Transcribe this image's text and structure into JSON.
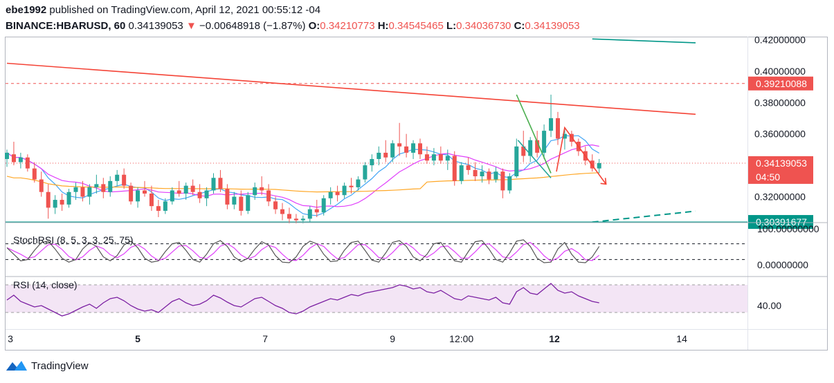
{
  "header": {
    "line1": {
      "user": "ebe1992",
      "rest": " published on TradingView.com, April 12, 2021 00:55:12 -04"
    },
    "symbol": "BINANCE:HBARUSD, 60",
    "price": "0.34139053",
    "arrow": "▼",
    "change": "−0.00648918 (−1.87%)",
    "o_label": "O:",
    "o_value": "0.34210773",
    "h_label": "H:",
    "h_value": "0.34545465",
    "l_label": "L:",
    "l_value": "0.34036730",
    "c_label": "C:",
    "c_value": "0.34139053"
  },
  "brand": {
    "name": "TradingView",
    "logo_icon": "tradingview-logo-icon"
  },
  "colors": {
    "up": "#26a69a",
    "down": "#ef5350",
    "trend_red": "#f44336",
    "trend_teal": "#009688",
    "ma_blue": "#42a5f5",
    "ma_pink": "#e040fb",
    "ma_orange": "#ffa726",
    "stoch_k": "#555555",
    "stoch_d": "#e040fb",
    "rsi": "#7b1fa2",
    "rsi_band": "#f3e5f5"
  },
  "chart_data": {
    "type": "candlestick",
    "ylim": [
      0.3035,
      0.4215
    ],
    "x_ticks": [
      {
        "label": "3",
        "x": 0.5
      },
      {
        "label": "5",
        "x": 19.0
      },
      {
        "label": "7",
        "x": 37.5
      },
      {
        "label": "9",
        "x": 56.0
      },
      {
        "label": "12:00",
        "x": 66.0
      },
      {
        "label": "12",
        "x": 79.5
      },
      {
        "label": "14",
        "x": 98.0
      }
    ],
    "price_ticks": [
      "0.42000000",
      "0.40000000",
      "0.38000000",
      "0.36000000",
      "0.32000000"
    ],
    "price_tick_values": [
      0.42,
      0.4,
      0.38,
      0.36,
      0.32
    ],
    "price_labels": [
      {
        "text": "0.39210088",
        "value": 0.39210088,
        "color": "#ef5350"
      },
      {
        "text": "0.34139053",
        "value": 0.34139053,
        "color": "#ef5350",
        "sub": "04:50"
      },
      {
        "text": "0.30391677",
        "value": 0.30391677,
        "color": "#009688"
      }
    ],
    "hlines": [
      {
        "value": 0.39210088,
        "color": "#ef5350",
        "style": "dashed"
      },
      {
        "value": 0.34139053,
        "color": "#ef5350",
        "style": "dotted"
      },
      {
        "value": 0.30391677,
        "color": "#009688",
        "style": "solid"
      }
    ],
    "trendlines": [
      {
        "name": "resistance",
        "color": "#f44336",
        "points": [
          [
            0,
            0.405
          ],
          [
            100,
            0.3725
          ]
        ]
      },
      {
        "name": "upper-teal",
        "color": "#009688",
        "points": [
          [
            85,
            0.4205
          ],
          [
            100,
            0.418
          ]
        ]
      },
      {
        "name": "support-teal",
        "color": "#009688",
        "style": "dashed",
        "points": [
          [
            85,
            0.3038
          ],
          [
            100,
            0.3108
          ]
        ]
      },
      {
        "name": "wedge-top",
        "color": "#4caf50",
        "points": [
          [
            74,
            0.385
          ],
          [
            79,
            0.335
          ]
        ]
      },
      {
        "name": "wedge-bottom",
        "color": "#26a69a",
        "points": [
          [
            74.2,
            0.356
          ],
          [
            79,
            0.332
          ]
        ]
      },
      {
        "name": "projection",
        "color": "#f44336",
        "points": [
          [
            79.8,
            0.336
          ],
          [
            81.0,
            0.364
          ],
          [
            87,
            0.328
          ]
        ]
      }
    ],
    "candles": [
      [
        0.344,
        0.35,
        0.339,
        0.348
      ],
      [
        0.347,
        0.355,
        0.34,
        0.342
      ],
      [
        0.342,
        0.348,
        0.338,
        0.345
      ],
      [
        0.345,
        0.347,
        0.336,
        0.338
      ],
      [
        0.338,
        0.342,
        0.329,
        0.331
      ],
      [
        0.331,
        0.336,
        0.32,
        0.323
      ],
      [
        0.323,
        0.328,
        0.306,
        0.313
      ],
      [
        0.313,
        0.321,
        0.309,
        0.318
      ],
      [
        0.318,
        0.322,
        0.311,
        0.315
      ],
      [
        0.315,
        0.325,
        0.313,
        0.323
      ],
      [
        0.323,
        0.329,
        0.318,
        0.326
      ],
      [
        0.326,
        0.33,
        0.317,
        0.32
      ],
      [
        0.32,
        0.328,
        0.315,
        0.326
      ],
      [
        0.326,
        0.334,
        0.322,
        0.328
      ],
      [
        0.328,
        0.332,
        0.319,
        0.323
      ],
      [
        0.323,
        0.333,
        0.32,
        0.33
      ],
      [
        0.33,
        0.337,
        0.327,
        0.334
      ],
      [
        0.334,
        0.338,
        0.325,
        0.327
      ],
      [
        0.327,
        0.329,
        0.315,
        0.317
      ],
      [
        0.317,
        0.326,
        0.313,
        0.324
      ],
      [
        0.324,
        0.33,
        0.32,
        0.322
      ],
      [
        0.322,
        0.327,
        0.311,
        0.314
      ],
      [
        0.314,
        0.318,
        0.307,
        0.311
      ],
      [
        0.311,
        0.319,
        0.309,
        0.317
      ],
      [
        0.317,
        0.326,
        0.315,
        0.324
      ],
      [
        0.324,
        0.33,
        0.32,
        0.322
      ],
      [
        0.322,
        0.329,
        0.318,
        0.327
      ],
      [
        0.327,
        0.331,
        0.321,
        0.323
      ],
      [
        0.323,
        0.328,
        0.316,
        0.319
      ],
      [
        0.319,
        0.326,
        0.314,
        0.324
      ],
      [
        0.324,
        0.335,
        0.322,
        0.332
      ],
      [
        0.332,
        0.337,
        0.323,
        0.325
      ],
      [
        0.325,
        0.328,
        0.312,
        0.315
      ],
      [
        0.315,
        0.323,
        0.312,
        0.32
      ],
      [
        0.32,
        0.324,
        0.308,
        0.311
      ],
      [
        0.311,
        0.323,
        0.309,
        0.321
      ],
      [
        0.321,
        0.329,
        0.318,
        0.326
      ],
      [
        0.326,
        0.333,
        0.321,
        0.324
      ],
      [
        0.324,
        0.328,
        0.314,
        0.317
      ],
      [
        0.317,
        0.32,
        0.309,
        0.312
      ],
      [
        0.312,
        0.316,
        0.305,
        0.309
      ],
      [
        0.309,
        0.313,
        0.303,
        0.306
      ],
      [
        0.306,
        0.309,
        0.303,
        0.305
      ],
      [
        0.305,
        0.308,
        0.303,
        0.306
      ],
      [
        0.306,
        0.314,
        0.304,
        0.312
      ],
      [
        0.312,
        0.318,
        0.307,
        0.31
      ],
      [
        0.31,
        0.321,
        0.308,
        0.319
      ],
      [
        0.319,
        0.326,
        0.315,
        0.323
      ],
      [
        0.323,
        0.327,
        0.317,
        0.321
      ],
      [
        0.321,
        0.329,
        0.319,
        0.327
      ],
      [
        0.327,
        0.332,
        0.322,
        0.326
      ],
      [
        0.326,
        0.333,
        0.324,
        0.331
      ],
      [
        0.331,
        0.342,
        0.329,
        0.34
      ],
      [
        0.34,
        0.347,
        0.336,
        0.344
      ],
      [
        0.344,
        0.352,
        0.34,
        0.348
      ],
      [
        0.348,
        0.356,
        0.342,
        0.345
      ],
      [
        0.345,
        0.356,
        0.342,
        0.354
      ],
      [
        0.354,
        0.367,
        0.346,
        0.352
      ],
      [
        0.352,
        0.36,
        0.345,
        0.348
      ],
      [
        0.348,
        0.356,
        0.344,
        0.354
      ],
      [
        0.354,
        0.357,
        0.344,
        0.347
      ],
      [
        0.347,
        0.352,
        0.341,
        0.343
      ],
      [
        0.343,
        0.351,
        0.34,
        0.347
      ],
      [
        0.347,
        0.352,
        0.341,
        0.343
      ],
      [
        0.343,
        0.35,
        0.337,
        0.346
      ],
      [
        0.346,
        0.349,
        0.327,
        0.33
      ],
      [
        0.33,
        0.342,
        0.328,
        0.34
      ],
      [
        0.34,
        0.345,
        0.334,
        0.337
      ],
      [
        0.337,
        0.342,
        0.33,
        0.333
      ],
      [
        0.333,
        0.34,
        0.329,
        0.336
      ],
      [
        0.336,
        0.338,
        0.328,
        0.331
      ],
      [
        0.331,
        0.339,
        0.329,
        0.336
      ],
      [
        0.336,
        0.338,
        0.319,
        0.324
      ],
      [
        0.324,
        0.335,
        0.322,
        0.333
      ],
      [
        0.333,
        0.357,
        0.332,
        0.352
      ],
      [
        0.352,
        0.362,
        0.342,
        0.346
      ],
      [
        0.346,
        0.358,
        0.342,
        0.356
      ],
      [
        0.356,
        0.362,
        0.345,
        0.348
      ],
      [
        0.348,
        0.366,
        0.344,
        0.362
      ],
      [
        0.362,
        0.385,
        0.358,
        0.37
      ],
      [
        0.37,
        0.374,
        0.353,
        0.357
      ],
      [
        0.357,
        0.363,
        0.35,
        0.36
      ],
      [
        0.36,
        0.362,
        0.352,
        0.355
      ],
      [
        0.355,
        0.357,
        0.346,
        0.349
      ],
      [
        0.349,
        0.352,
        0.34,
        0.343
      ],
      [
        0.343,
        0.347,
        0.336,
        0.338
      ],
      [
        0.338,
        0.344,
        0.335,
        0.3414
      ]
    ],
    "stoch_levels": {
      "ticks": [
        "100.00000000",
        "0.00000000"
      ],
      "dashed": [
        80,
        20
      ]
    },
    "stoch_label": "StochRSI (8, 5, 3, 3, 25, 75)",
    "stoch_k": [
      65,
      40,
      15,
      20,
      55,
      85,
      90,
      60,
      25,
      10,
      20,
      60,
      85,
      70,
      30,
      15,
      35,
      75,
      90,
      65,
      25,
      10,
      15,
      50,
      80,
      85,
      55,
      20,
      10,
      40,
      80,
      92,
      70,
      30,
      12,
      25,
      60,
      88,
      75,
      35,
      10,
      8,
      30,
      70,
      90,
      80,
      40,
      12,
      15,
      55,
      85,
      90,
      55,
      18,
      10,
      45,
      85,
      92,
      70,
      30,
      15,
      40,
      80,
      85,
      50,
      15,
      10,
      50,
      88,
      92,
      60,
      20,
      10,
      45,
      90,
      95,
      70,
      25,
      8,
      10,
      60,
      85,
      40,
      10,
      8,
      30,
      70
    ],
    "rsi_label": "RSI (14, close)",
    "rsi_band": [
      30,
      70
    ],
    "rsi_tick": "40.00",
    "rsi_ylim": [
      10,
      80
    ],
    "rsi": [
      48,
      55,
      46,
      42,
      38,
      40,
      35,
      30,
      25,
      28,
      33,
      38,
      42,
      36,
      44,
      50,
      52,
      47,
      40,
      35,
      32,
      34,
      30,
      38,
      46,
      50,
      44,
      40,
      42,
      47,
      55,
      51,
      45,
      40,
      38,
      44,
      50,
      52,
      46,
      40,
      36,
      30,
      28,
      32,
      38,
      42,
      46,
      50,
      48,
      52,
      56,
      54,
      58,
      60,
      62,
      64,
      66,
      70,
      68,
      64,
      66,
      60,
      58,
      62,
      56,
      50,
      48,
      54,
      52,
      50,
      48,
      52,
      44,
      42,
      60,
      66,
      58,
      56,
      64,
      72,
      62,
      58,
      60,
      54,
      50,
      46,
      44
    ]
  }
}
